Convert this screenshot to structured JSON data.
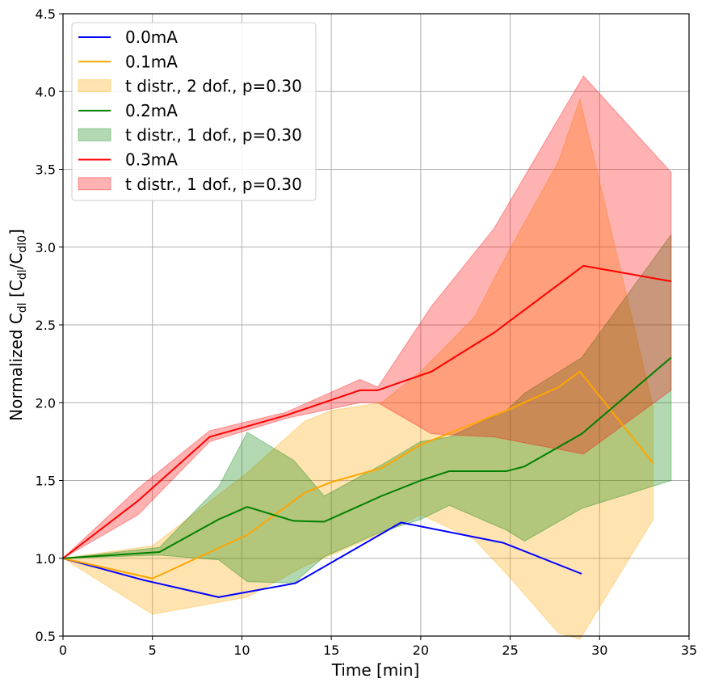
{
  "chart_data": {
    "type": "line",
    "xlabel": "Time [min]",
    "ylabel": "Normalized C",
    "ylabel_parts": {
      "prefix": "Normalized C",
      "sub1": "dl",
      "mid": " [C",
      "sub2": "dl",
      "mid2": "/C",
      "sub3": "dl0",
      "suffix": "]"
    },
    "xlim": [
      0,
      35
    ],
    "ylim": [
      0.5,
      4.5
    ],
    "xticks": [
      0,
      5,
      10,
      15,
      20,
      25,
      30,
      35
    ],
    "xtick_labels": [
      "0",
      "5",
      "10",
      "15",
      "20",
      "25",
      "30",
      "35"
    ],
    "yticks": [
      0.5,
      1.0,
      1.5,
      2.0,
      2.5,
      3.0,
      3.5,
      4.0,
      4.5
    ],
    "ytick_labels": [
      "0.5",
      "1.0",
      "1.5",
      "2.0",
      "2.5",
      "3.0",
      "3.5",
      "4.0",
      "4.5"
    ],
    "grid": true,
    "legend_position": "top-left",
    "series": [
      {
        "name": "0.0mA",
        "color": "#0000ff",
        "x": [
          0,
          4.5,
          8.7,
          13,
          18.9,
          24.6,
          29
        ],
        "y": [
          1.0,
          0.86,
          0.75,
          0.84,
          1.23,
          1.1,
          0.9
        ]
      },
      {
        "name": "0.1mA",
        "color": "#ffa500",
        "x": [
          0,
          5,
          10.3,
          13.5,
          15,
          17.8,
          20,
          24.8,
          27.7,
          28.9,
          33
        ],
        "y": [
          1.0,
          0.87,
          1.15,
          1.42,
          1.49,
          1.58,
          1.73,
          1.95,
          2.1,
          2.2,
          1.61
        ],
        "band": {
          "name": "t distr., 2 dof., p=0.30",
          "color": "#ffa500",
          "opacity": 0.3,
          "x": [
            0,
            5,
            10.3,
            13.5,
            15,
            17.8,
            20,
            23,
            24.8,
            27.7,
            28.9,
            33
          ],
          "upper": [
            1.0,
            1.08,
            1.55,
            1.88,
            1.95,
            2.0,
            2.2,
            2.55,
            2.95,
            3.55,
            3.95,
            1.97
          ],
          "lower": [
            1.0,
            0.64,
            0.75,
            0.95,
            1.02,
            1.16,
            1.28,
            1.12,
            0.9,
            0.52,
            0.48,
            1.25
          ]
        }
      },
      {
        "name": "0.2mA",
        "color": "#008000",
        "x": [
          0,
          5.4,
          8.7,
          10.3,
          12.9,
          14.6,
          17.8,
          20,
          21.6,
          24.8,
          25.8,
          29,
          34
        ],
        "y": [
          1.0,
          1.04,
          1.25,
          1.33,
          1.24,
          1.235,
          1.4,
          1.5,
          1.56,
          1.56,
          1.59,
          1.8,
          2.29
        ],
        "band": {
          "name": "t distr., 1 dof., p=0.30",
          "color": "#008000",
          "opacity": 0.3,
          "x": [
            0,
            5.4,
            8.7,
            10.3,
            12.9,
            14.6,
            17.8,
            20,
            21.6,
            24.8,
            25.8,
            29,
            34
          ],
          "upper": [
            1.0,
            1.07,
            1.46,
            1.81,
            1.63,
            1.4,
            1.6,
            1.75,
            1.78,
            1.95,
            2.06,
            2.29,
            3.08
          ],
          "lower": [
            1.0,
            1.02,
            0.99,
            0.85,
            0.84,
            1.01,
            1.17,
            1.25,
            1.34,
            1.18,
            1.11,
            1.32,
            1.5
          ]
        }
      },
      {
        "name": "0.3mA",
        "color": "#ff0000",
        "x": [
          0,
          4.2,
          8.2,
          12.5,
          16.6,
          17.6,
          20.6,
          24.1,
          29.1,
          34
        ],
        "y": [
          1.0,
          1.37,
          1.78,
          1.92,
          2.08,
          2.08,
          2.2,
          2.45,
          2.88,
          2.78
        ],
        "band": {
          "name": "t distr., 1 dof., p=0.30",
          "color": "#ff0000",
          "opacity": 0.3,
          "x": [
            0,
            4.2,
            8.2,
            12.5,
            16.6,
            17.6,
            20.6,
            24.1,
            29.1,
            34
          ],
          "upper": [
            1.0,
            1.45,
            1.82,
            1.94,
            2.15,
            2.1,
            2.62,
            3.12,
            4.1,
            3.48
          ],
          "lower": [
            1.0,
            1.28,
            1.75,
            1.9,
            2.0,
            2.0,
            1.8,
            1.78,
            1.67,
            2.08
          ]
        }
      }
    ],
    "legend_entries": [
      {
        "kind": "line",
        "label": "0.0mA",
        "color": "#0000ff"
      },
      {
        "kind": "line",
        "label": "0.1mA",
        "color": "#ffa500"
      },
      {
        "kind": "patch",
        "label": "t distr., 2 dof., p=0.30",
        "color": "#ffa500"
      },
      {
        "kind": "line",
        "label": "0.2mA",
        "color": "#008000"
      },
      {
        "kind": "patch",
        "label": "t distr., 1 dof., p=0.30",
        "color": "#008000"
      },
      {
        "kind": "line",
        "label": "0.3mA",
        "color": "#ff0000"
      },
      {
        "kind": "patch",
        "label": "t distr., 1 dof., p=0.30",
        "color": "#ff0000"
      }
    ]
  }
}
